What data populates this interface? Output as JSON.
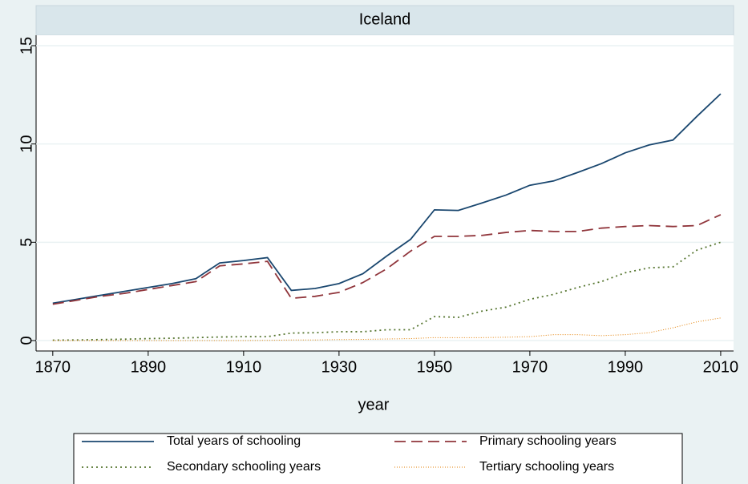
{
  "chart_data": {
    "type": "line",
    "subtitle": "Iceland",
    "xlabel": "year",
    "x": [
      1870,
      1875,
      1880,
      1885,
      1890,
      1895,
      1900,
      1905,
      1910,
      1915,
      1920,
      1925,
      1930,
      1935,
      1940,
      1945,
      1950,
      1955,
      1960,
      1965,
      1970,
      1975,
      1980,
      1985,
      1990,
      1995,
      2000,
      2005,
      2010
    ],
    "series": [
      {
        "name": "Total years of schooling",
        "color": "#1a476f",
        "dash": "solid",
        "values": [
          1.9,
          2.1,
          2.3,
          2.5,
          2.7,
          2.9,
          3.15,
          3.95,
          4.07,
          4.22,
          2.55,
          2.65,
          2.9,
          3.4,
          4.3,
          5.15,
          6.65,
          6.62,
          7.0,
          7.4,
          7.9,
          8.12,
          8.55,
          9.0,
          9.55,
          9.95,
          10.2,
          11.4,
          12.55
        ]
      },
      {
        "name": "Primary schooling years",
        "color": "#90353b",
        "dash": "dashed",
        "values": [
          1.85,
          2.05,
          2.25,
          2.4,
          2.6,
          2.8,
          3.0,
          3.8,
          3.9,
          4.03,
          2.15,
          2.25,
          2.45,
          2.95,
          3.65,
          4.55,
          5.3,
          5.3,
          5.35,
          5.5,
          5.6,
          5.55,
          5.55,
          5.72,
          5.8,
          5.85,
          5.8,
          5.85,
          6.4
        ]
      },
      {
        "name": "Secondary schooling years",
        "color": "#55752f",
        "dash": "dotted",
        "values": [
          0.02,
          0.03,
          0.05,
          0.07,
          0.1,
          0.12,
          0.15,
          0.18,
          0.2,
          0.2,
          0.38,
          0.4,
          0.45,
          0.45,
          0.55,
          0.55,
          1.22,
          1.18,
          1.5,
          1.7,
          2.1,
          2.35,
          2.7,
          3.0,
          3.45,
          3.7,
          3.75,
          4.6,
          5.0
        ]
      },
      {
        "name": "Tertiary schooling years",
        "color": "#e37e00",
        "dash": "fine",
        "values": [
          0,
          0,
          0,
          0,
          0,
          0,
          0,
          0,
          0,
          0.01,
          0.03,
          0.03,
          0.05,
          0.06,
          0.08,
          0.1,
          0.15,
          0.15,
          0.15,
          0.17,
          0.2,
          0.3,
          0.3,
          0.25,
          0.3,
          0.4,
          0.65,
          0.95,
          1.15
        ]
      }
    ],
    "xlim": [
      1866.5,
      2012.7
    ],
    "xticks": [
      1870,
      1890,
      1910,
      1930,
      1950,
      1970,
      1990,
      2010
    ],
    "ylim": [
      -0.53,
      15.53
    ],
    "yticks": [
      0,
      5,
      10,
      15
    ],
    "grid": true
  }
}
